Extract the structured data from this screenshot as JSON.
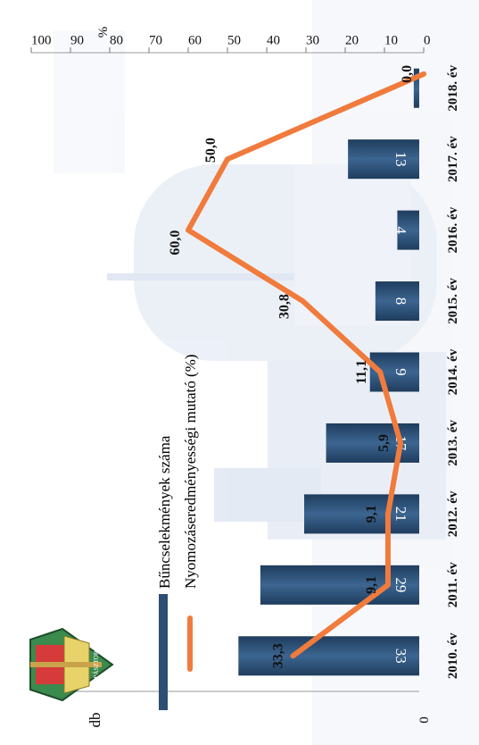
{
  "chart_data": {
    "type": "bar",
    "categories": [
      "2010. év",
      "2011. év",
      "2012. év",
      "2013. év",
      "2014. év",
      "2015. év",
      "2016. év",
      "2017. év",
      "2018. év"
    ],
    "series": [
      {
        "name": "Bűncselekmények száma",
        "type": "bar",
        "axis": "left",
        "values": [
          33,
          29,
          21,
          17,
          9,
          8,
          4,
          13,
          1
        ]
      },
      {
        "name": "Nyomozáseredményességi mutató (%)",
        "type": "line",
        "axis": "right",
        "values": [
          33.3,
          9.1,
          9.1,
          5.9,
          11.1,
          30.8,
          60.0,
          50.0,
          0.0
        ]
      }
    ],
    "bar_labels": [
      "33",
      "29",
      "21",
      "17",
      "9",
      "8",
      "4",
      "13",
      ""
    ],
    "line_labels": [
      "33,3",
      "9,1",
      "9,1",
      "5,9",
      "11,1",
      "30,8",
      "60,0",
      "50,0",
      "0,0"
    ],
    "left_axis": {
      "label": "db",
      "ylim": [
        0,
        70
      ],
      "tick_labels": [
        "0"
      ]
    },
    "right_axis": {
      "label": "%",
      "ylim": [
        0,
        100
      ],
      "ticks": [
        0,
        10,
        20,
        30,
        40,
        50,
        60,
        70,
        80,
        90,
        100
      ],
      "tick_labels": [
        "0",
        "10",
        "20",
        "30",
        "40",
        "50",
        "60",
        "70",
        "80",
        "90",
        "100"
      ]
    },
    "legend_position": "top-left",
    "grid": false,
    "colors": {
      "bar": "#2c4f73",
      "line": "#f07b3c",
      "background_tint": "#dfe6f3"
    }
  },
  "logo": {
    "name": "police-emblem-icon",
    "text": "PÁSZTOR"
  }
}
